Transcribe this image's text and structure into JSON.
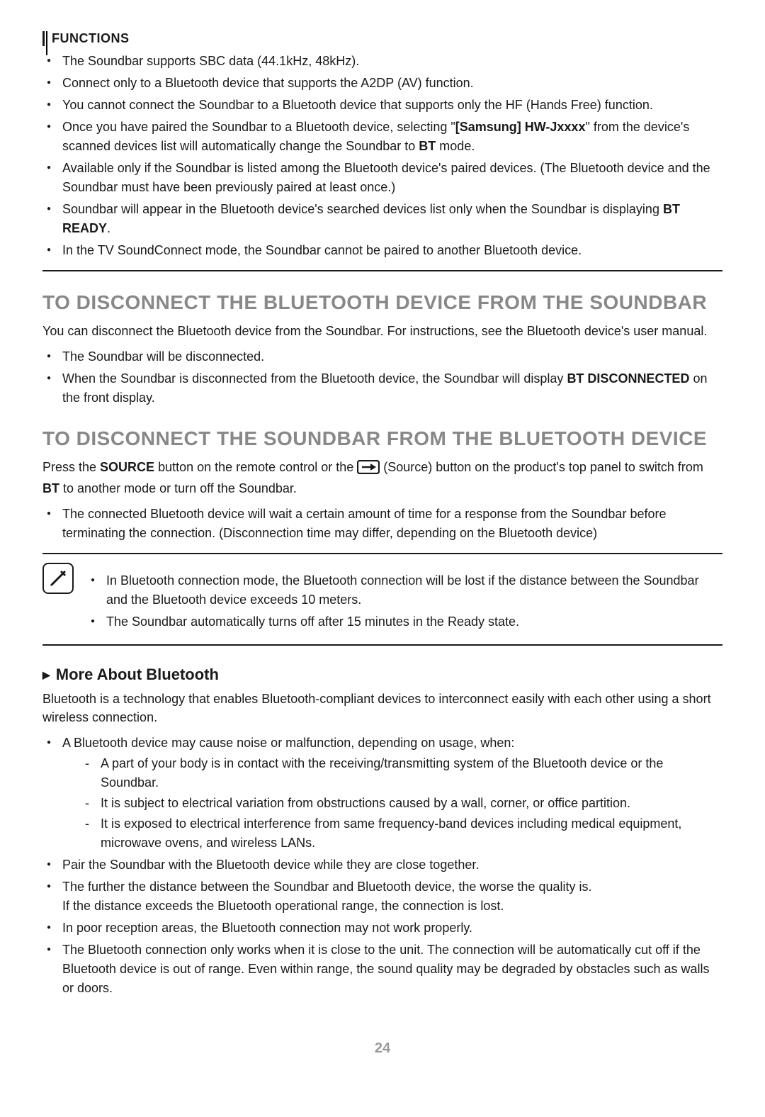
{
  "header": {
    "label": "FUNCTIONS"
  },
  "intro_bullets": [
    {
      "pre": "The Soundbar supports SBC data (44.1kHz, 48kHz)."
    },
    {
      "pre": "Connect only to a Bluetooth device that supports the A2DP (AV) function."
    },
    {
      "pre": "You cannot connect the Soundbar to a Bluetooth device that supports only the HF (Hands Free) function."
    },
    {
      "pre": "Once you have paired the Soundbar to a Bluetooth device, selecting \"",
      "bold": "[Samsung] HW-Jxxxx",
      "mid": "\" from the device's scanned devices list will automatically change the Soundbar to ",
      "bold2": "BT",
      "post": " mode."
    },
    {
      "pre": "Available only if the Soundbar is listed among the Bluetooth device's paired devices. (The Bluetooth device and the Soundbar must have been previously paired at least once.)"
    },
    {
      "pre": "Soundbar will appear in the Bluetooth device's searched devices list only when the Soundbar is displaying ",
      "bold": "BT READY",
      "post": "."
    },
    {
      "pre": "In the TV SoundConnect mode, the Soundbar cannot be paired to another Bluetooth device."
    }
  ],
  "section1": {
    "title": "TO DISCONNECT THE BLUETOOTH DEVICE FROM THE SOUNDBAR",
    "body": "You can disconnect the Bluetooth device from the Soundbar. For instructions, see the Bluetooth device's user manual.",
    "bullets": [
      {
        "pre": "The Soundbar will be disconnected."
      },
      {
        "pre": "When the Soundbar is disconnected from the Bluetooth device, the Soundbar will display ",
        "bold": "BT DISCONNECTED",
        "post": " on the front display."
      }
    ]
  },
  "section2": {
    "title": "TO DISCONNECT THE SOUNDBAR FROM THE BLUETOOTH DEVICE",
    "body_pre": "Press the ",
    "body_bold1": "SOURCE",
    "body_mid1": " button on the remote control or the ",
    "body_mid2": " (Source) button on the product's top panel to switch from ",
    "body_bold2": "BT",
    "body_post": " to another mode or turn off the Soundbar.",
    "bullets": [
      {
        "pre": "The connected Bluetooth device will wait a certain amount of time for a response from the Soundbar before terminating the connection. (Disconnection time may differ, depending on the Bluetooth device)"
      }
    ]
  },
  "note": {
    "bullets": [
      {
        "pre": "In Bluetooth connection mode, the Bluetooth connection will be lost if the distance between the Soundbar and the Bluetooth device exceeds 10 meters."
      },
      {
        "pre": "The Soundbar automatically turns off after 15 minutes in the Ready state."
      }
    ]
  },
  "more": {
    "title": "More About Bluetooth",
    "body": "Bluetooth is a technology that enables Bluetooth-compliant devices to interconnect easily with each other using a short wireless connection.",
    "bullets": [
      {
        "pre": "A Bluetooth device may cause noise or malfunction, depending on usage, when:",
        "dashes": [
          "A part of your body is in contact with the receiving/transmitting system of the Bluetooth device or the Soundbar.",
          "It is subject to electrical variation from obstructions caused by a wall, corner, or office partition.",
          "It is exposed to electrical interference from same frequency-band devices including medical equipment, microwave ovens, and wireless LANs."
        ]
      },
      {
        "pre": "Pair the Soundbar with the Bluetooth device while they are close together."
      },
      {
        "pre": "The further the distance between the Soundbar and Bluetooth device, the worse the quality is.",
        "line2": "If the distance exceeds the Bluetooth operational range, the connection is lost."
      },
      {
        "pre": "In poor reception areas, the Bluetooth connection may not work properly."
      },
      {
        "pre": "The Bluetooth connection only works when it is close to the unit. The connection will be automatically cut off if the Bluetooth device is out of range. Even within range, the sound quality may be degraded by obstacles such as walls or doors."
      }
    ]
  },
  "page_number": "24",
  "colors": {
    "heading_grey": "#888888",
    "text": "#1a1a1a",
    "pagenum": "#9a9a9a"
  }
}
